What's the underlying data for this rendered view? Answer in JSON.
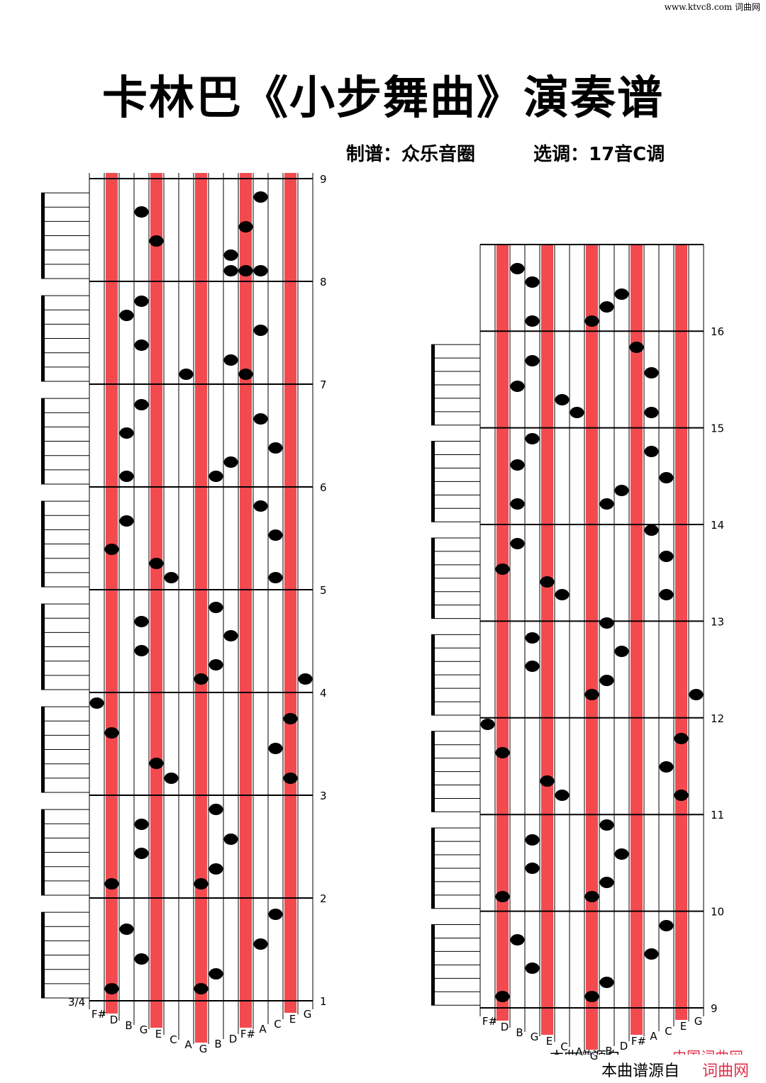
{
  "header": {
    "site": "www.ktvc8.com 词曲网",
    "title": "卡林巴《小步舞曲》演奏谱",
    "arranger": "制谱：众乐音圈",
    "key": "选调：17音C调"
  },
  "left": {
    "time_signature": "3/4",
    "measure_numbers": [
      9,
      8,
      7,
      6,
      5,
      4,
      3,
      2,
      1
    ],
    "keys": [
      "F#",
      "D",
      "B",
      "G",
      "E",
      "C",
      "A",
      "G",
      "B",
      "D",
      "F#",
      "A",
      "C",
      "E",
      "G"
    ]
  },
  "right": {
    "measure_numbers": [
      16,
      15,
      14,
      13,
      12,
      11,
      10,
      9
    ],
    "keys": [
      "F#",
      "D",
      "B",
      "G",
      "E",
      "C",
      "A",
      "G",
      "B",
      "D",
      "F#",
      "A",
      "C",
      "E",
      "G"
    ]
  },
  "footer": {
    "overlay_source": "本曲谱源自",
    "overlay_brand": "中国词曲网",
    "source": "本曲谱源自",
    "brand": "词曲网"
  }
}
